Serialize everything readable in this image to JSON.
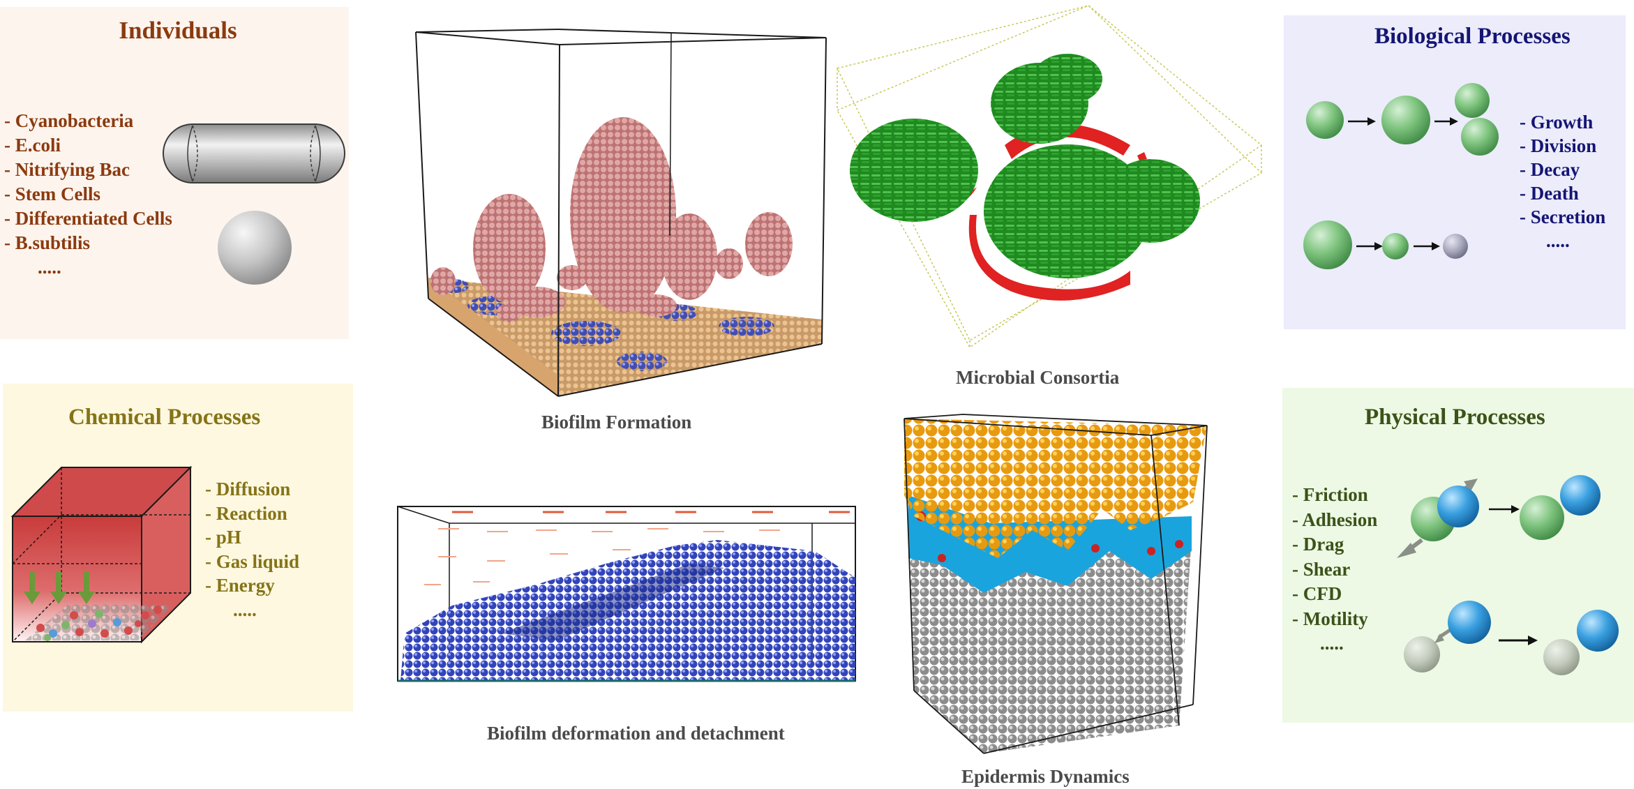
{
  "individuals": {
    "title": "Individuals",
    "items": [
      "- Cyanobacteria",
      "- E.coli",
      "- Nitrifying Bac",
      "- Stem Cells",
      "- Differentiated Cells",
      "- B.subtilis",
      "....."
    ],
    "colors": {
      "bg": "#fdf4ee",
      "text": "#8b3a0e"
    }
  },
  "biological": {
    "title": "Biological Processes",
    "items": [
      "- Growth",
      "- Division",
      "- Decay",
      "- Death",
      "- Secretion",
      "....."
    ],
    "colors": {
      "bg": "#ececfb",
      "text": "#151575"
    }
  },
  "chemical": {
    "title": "Chemical Processes",
    "items": [
      "- Diffusion",
      "- Reaction",
      "- pH",
      "- Gas liquid",
      "- Energy",
      "....."
    ],
    "colors": {
      "bg": "#fdf8df",
      "text": "#857318"
    }
  },
  "physical": {
    "title": "Physical Processes",
    "items": [
      "- Friction",
      "- Adhesion",
      "- Drag",
      "- Shear",
      "- CFD",
      "- Motility",
      "....."
    ],
    "colors": {
      "bg": "#edf9e4",
      "text": "#3b5219"
    }
  },
  "captions": {
    "biofilm_formation": "Biofilm Formation",
    "microbial_consortia": "Microbial Consortia",
    "biofilm_deformation": "Biofilm deformation and detachment",
    "epidermis": "Epidermis Dynamics"
  }
}
